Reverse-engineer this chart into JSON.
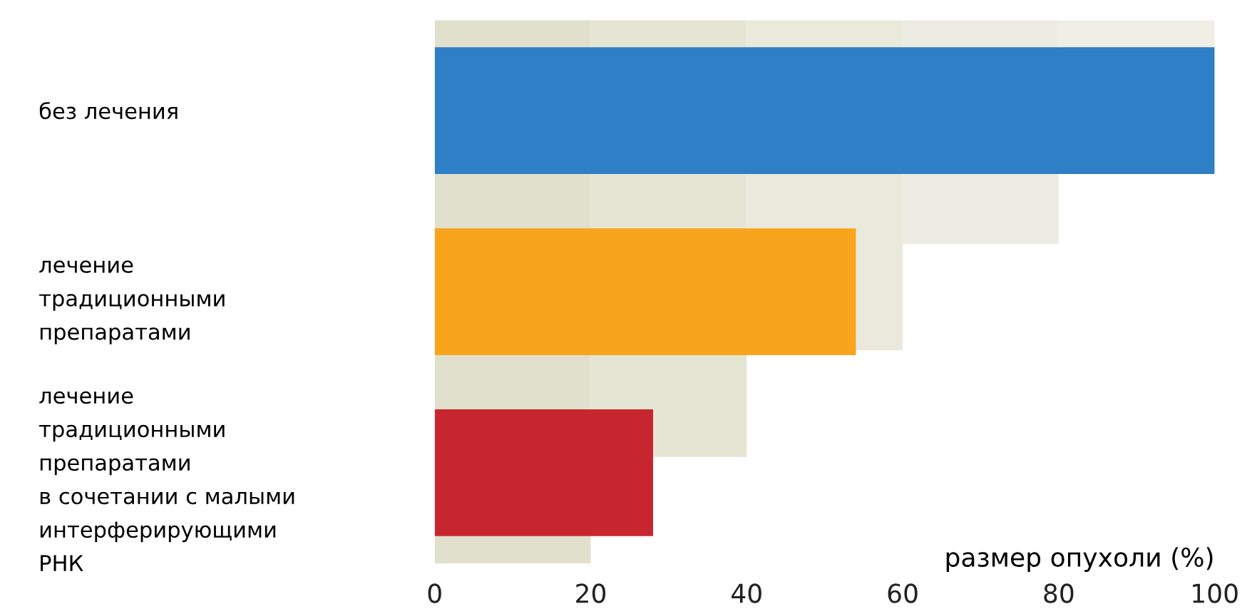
{
  "chart_data": {
    "type": "bar",
    "orientation": "horizontal",
    "xlabel": "размер опухоли (%)",
    "categories": [
      "без лечения",
      "лечение\nтрадиционными\nпрепаратами",
      "лечение\nтрадиционными\nпрепаратами\nв сочетании с малыми\nинтерферирующими\nРНК"
    ],
    "values": [
      100,
      54,
      28
    ],
    "colors": [
      "#2e7fc6",
      "#f8a41c",
      "#c8262f"
    ],
    "xlim": [
      0,
      100
    ],
    "xticks": [
      0,
      20,
      40,
      60,
      80,
      100
    ],
    "grid": false,
    "legend": false
  }
}
